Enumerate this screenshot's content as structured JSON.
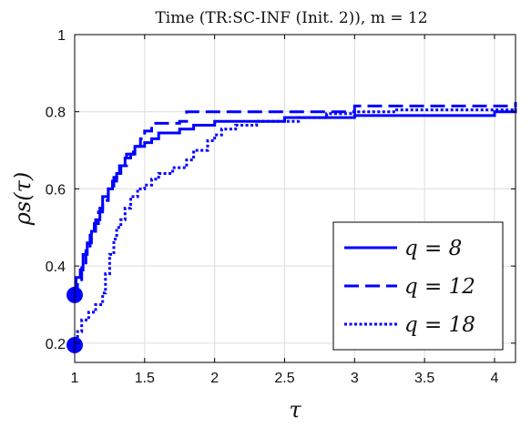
{
  "chart_data": {
    "type": "line",
    "title": "Time (TR:SC-INF (Init. 2)), m = 12",
    "xlabel": "τ",
    "ylabel": "ρs(τ)",
    "xlim": [
      1,
      4.15
    ],
    "ylim": [
      0.15,
      1.0
    ],
    "xticks": [
      "1",
      "1.5",
      "2",
      "2.5",
      "3",
      "3.5",
      "4"
    ],
    "yticks": [
      "0.2",
      "0.4",
      "0.6",
      "0.8",
      "1"
    ],
    "grid": true,
    "legend_position": "lower-right",
    "series": [
      {
        "name": "q = 8",
        "line_style": "solid",
        "color": "#0000ff",
        "points": [
          [
            1,
            0.325
          ],
          [
            1.01,
            0.37
          ],
          [
            1.04,
            0.39
          ],
          [
            1.06,
            0.43
          ],
          [
            1.09,
            0.46
          ],
          [
            1.12,
            0.49
          ],
          [
            1.15,
            0.52
          ],
          [
            1.18,
            0.55
          ],
          [
            1.2,
            0.58
          ],
          [
            1.24,
            0.6
          ],
          [
            1.27,
            0.62
          ],
          [
            1.3,
            0.64
          ],
          [
            1.33,
            0.66
          ],
          [
            1.36,
            0.68
          ],
          [
            1.4,
            0.69
          ],
          [
            1.43,
            0.71
          ],
          [
            1.5,
            0.72
          ],
          [
            1.55,
            0.73
          ],
          [
            1.6,
            0.745
          ],
          [
            1.75,
            0.755
          ],
          [
            1.85,
            0.765
          ],
          [
            2.0,
            0.775
          ],
          [
            2.5,
            0.785
          ],
          [
            3.0,
            0.79
          ],
          [
            3.95,
            0.79
          ],
          [
            4.0,
            0.8
          ],
          [
            4.15,
            0.805
          ]
        ]
      },
      {
        "name": "q = 12",
        "line_style": "dashed",
        "color": "#0000ff",
        "points": [
          [
            1,
            0.325
          ],
          [
            1.02,
            0.36
          ],
          [
            1.05,
            0.4
          ],
          [
            1.08,
            0.44
          ],
          [
            1.11,
            0.48
          ],
          [
            1.14,
            0.51
          ],
          [
            1.17,
            0.54
          ],
          [
            1.2,
            0.57
          ],
          [
            1.24,
            0.6
          ],
          [
            1.28,
            0.63
          ],
          [
            1.32,
            0.66
          ],
          [
            1.37,
            0.69
          ],
          [
            1.42,
            0.71
          ],
          [
            1.47,
            0.73
          ],
          [
            1.5,
            0.75
          ],
          [
            1.55,
            0.77
          ],
          [
            1.75,
            0.775
          ],
          [
            1.8,
            0.8
          ],
          [
            2.5,
            0.8
          ],
          [
            2.6,
            0.8
          ],
          [
            3.0,
            0.815
          ],
          [
            4.15,
            0.825
          ]
        ]
      },
      {
        "name": "q = 18",
        "line_style": "dotted",
        "color": "#0000ff",
        "points": [
          [
            1,
            0.195
          ],
          [
            1.02,
            0.23
          ],
          [
            1.05,
            0.26
          ],
          [
            1.1,
            0.28
          ],
          [
            1.15,
            0.3
          ],
          [
            1.2,
            0.33
          ],
          [
            1.22,
            0.38
          ],
          [
            1.25,
            0.43
          ],
          [
            1.28,
            0.47
          ],
          [
            1.3,
            0.5
          ],
          [
            1.33,
            0.52
          ],
          [
            1.36,
            0.55
          ],
          [
            1.4,
            0.58
          ],
          [
            1.45,
            0.6
          ],
          [
            1.5,
            0.61
          ],
          [
            1.55,
            0.625
          ],
          [
            1.6,
            0.64
          ],
          [
            1.7,
            0.655
          ],
          [
            1.8,
            0.675
          ],
          [
            1.85,
            0.7
          ],
          [
            1.95,
            0.725
          ],
          [
            2.0,
            0.74
          ],
          [
            2.05,
            0.755
          ],
          [
            2.15,
            0.765
          ],
          [
            2.3,
            0.775
          ],
          [
            2.6,
            0.785
          ],
          [
            2.8,
            0.795
          ],
          [
            3.0,
            0.8
          ],
          [
            3.3,
            0.805
          ],
          [
            4.15,
            0.81
          ]
        ]
      }
    ],
    "start_markers": [
      {
        "x": 1,
        "y": 0.325
      },
      {
        "x": 1,
        "y": 0.195
      }
    ]
  }
}
